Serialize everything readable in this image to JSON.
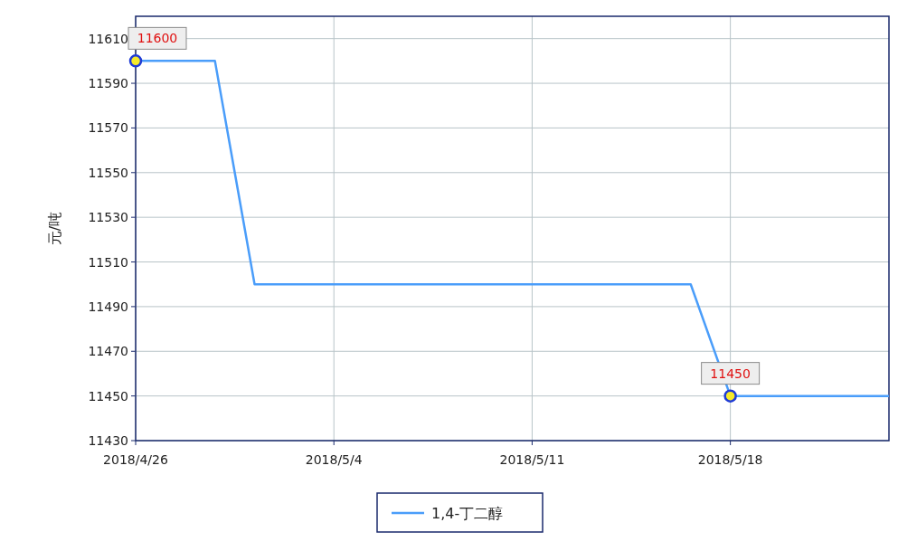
{
  "chart_data": {
    "type": "line",
    "ylabel": "元/吨",
    "categories": [
      "2018/4/26",
      null,
      null,
      null,
      null,
      "2018/5/4",
      null,
      null,
      null,
      null,
      "2018/5/11",
      null,
      null,
      null,
      null,
      "2018/5/18",
      null,
      null,
      null,
      null
    ],
    "series": [
      {
        "name": "1,4-丁二醇",
        "color": "#4a9dfa",
        "values": [
          11600,
          11600,
          11600,
          11500,
          11500,
          11500,
          11500,
          11500,
          11500,
          11500,
          11500,
          11500,
          11500,
          11500,
          11500,
          11450,
          11450,
          11450,
          11450,
          11450
        ]
      }
    ],
    "ylim": [
      11430,
      11620
    ],
    "yticks": [
      11430,
      11450,
      11470,
      11490,
      11510,
      11530,
      11550,
      11570,
      11590,
      11610
    ],
    "annotations": [
      {
        "text": "11600",
        "x": "2018/4/26",
        "y": 11600
      },
      {
        "text": "11450",
        "x": "2018/5/18",
        "y": 11450
      }
    ],
    "grid": true,
    "legend": "bottom",
    "marker": "none",
    "line_style": "solid"
  }
}
